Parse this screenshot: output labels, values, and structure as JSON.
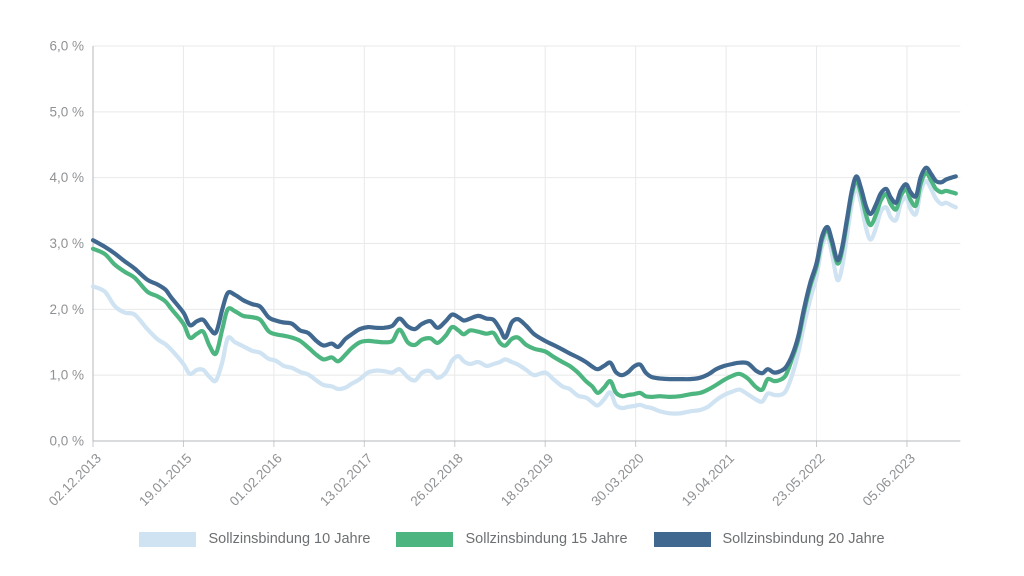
{
  "chart_data": {
    "type": "line",
    "title": "",
    "xlabel": "",
    "ylabel": "",
    "grid": true,
    "legend_position": "bottom",
    "y_axis": {
      "min": 0,
      "max": 6,
      "tick_step": 1,
      "tick_labels": [
        "0,0 %",
        "1,0 %",
        "2,0 %",
        "3,0 %",
        "4,0 %",
        "5,0 %",
        "6,0 %"
      ]
    },
    "x_axis": {
      "tick_labels": [
        "02.12.2013",
        "19.01.2015",
        "01.02.2016",
        "13.02.2017",
        "26.02.2018",
        "18.03.2019",
        "30.03.2020",
        "19.04.2021",
        "23.05.2022",
        "05.06.2023"
      ],
      "label_rotation_deg": -45,
      "axis_end_tick_units": 9.59
    },
    "colors": {
      "axis": "#b4b7ba",
      "grid": "#e8e9ea",
      "tick_below_axis": "#c8cacc",
      "tick_label": "#8f9295",
      "legend_text": "#6d7073"
    },
    "x": [
      0,
      0.13,
      0.24,
      0.35,
      0.46,
      0.6,
      0.71,
      0.8,
      0.87,
      1.0,
      1.07,
      1.15,
      1.22,
      1.29,
      1.36,
      1.43,
      1.49,
      1.57,
      1.66,
      1.76,
      1.85,
      1.94,
      2.02,
      2.11,
      2.2,
      2.29,
      2.38,
      2.47,
      2.55,
      2.64,
      2.71,
      2.79,
      2.86,
      2.95,
      3.04,
      3.13,
      3.22,
      3.31,
      3.39,
      3.48,
      3.56,
      3.64,
      3.73,
      3.81,
      3.9,
      3.97,
      4.04,
      4.1,
      4.17,
      4.26,
      4.35,
      4.43,
      4.5,
      4.56,
      4.63,
      4.7,
      4.79,
      4.88,
      5.0,
      5.09,
      5.19,
      5.27,
      5.36,
      5.45,
      5.52,
      5.58,
      5.65,
      5.72,
      5.78,
      5.85,
      5.92,
      5.98,
      6.05,
      6.11,
      6.18,
      6.27,
      6.38,
      6.49,
      6.6,
      6.71,
      6.8,
      6.89,
      6.98,
      7.07,
      7.15,
      7.24,
      7.33,
      7.4,
      7.46,
      7.53,
      7.6,
      7.66,
      7.73,
      7.8,
      7.86,
      7.93,
      8.0,
      8.06,
      8.12,
      8.17,
      8.23,
      8.28,
      8.34,
      8.39,
      8.44,
      8.49,
      8.55,
      8.6,
      8.66,
      8.71,
      8.77,
      8.82,
      8.88,
      8.93,
      8.99,
      9.04,
      9.1,
      9.15,
      9.21,
      9.27,
      9.32,
      9.38,
      9.43,
      9.49,
      9.54
    ],
    "series": [
      {
        "name": "Sollzinsbindung 10 Jahre",
        "color": "#cfe3f2",
        "values": [
          2.35,
          2.27,
          2.05,
          1.95,
          1.92,
          1.7,
          1.55,
          1.47,
          1.38,
          1.17,
          1.02,
          1.08,
          1.08,
          0.97,
          0.92,
          1.2,
          1.56,
          1.5,
          1.44,
          1.37,
          1.34,
          1.25,
          1.22,
          1.14,
          1.11,
          1.05,
          1.01,
          0.92,
          0.85,
          0.83,
          0.79,
          0.81,
          0.87,
          0.94,
          1.04,
          1.07,
          1.06,
          1.04,
          1.09,
          0.97,
          0.92,
          1.04,
          1.06,
          0.96,
          1.04,
          1.22,
          1.29,
          1.21,
          1.17,
          1.2,
          1.14,
          1.17,
          1.2,
          1.24,
          1.2,
          1.16,
          1.08,
          1.0,
          1.04,
          0.94,
          0.83,
          0.79,
          0.69,
          0.66,
          0.59,
          0.54,
          0.63,
          0.74,
          0.55,
          0.5,
          0.52,
          0.53,
          0.55,
          0.52,
          0.5,
          0.45,
          0.42,
          0.42,
          0.45,
          0.47,
          0.52,
          0.62,
          0.7,
          0.75,
          0.78,
          0.71,
          0.63,
          0.6,
          0.72,
          0.7,
          0.7,
          0.76,
          1.0,
          1.35,
          1.75,
          2.15,
          2.5,
          2.95,
          3.1,
          2.85,
          2.45,
          2.62,
          3.15,
          3.6,
          3.85,
          3.62,
          3.22,
          3.06,
          3.25,
          3.48,
          3.55,
          3.4,
          3.36,
          3.6,
          3.7,
          3.52,
          3.45,
          3.78,
          3.95,
          3.82,
          3.68,
          3.6,
          3.62,
          3.58,
          3.55
        ]
      },
      {
        "name": "Sollzinsbindung 15 Jahre",
        "color": "#4db580",
        "values": [
          2.92,
          2.84,
          2.68,
          2.57,
          2.48,
          2.27,
          2.2,
          2.12,
          2.0,
          1.78,
          1.57,
          1.63,
          1.66,
          1.44,
          1.33,
          1.7,
          2.0,
          1.97,
          1.9,
          1.88,
          1.84,
          1.67,
          1.62,
          1.6,
          1.57,
          1.52,
          1.42,
          1.31,
          1.24,
          1.27,
          1.21,
          1.31,
          1.41,
          1.5,
          1.52,
          1.51,
          1.5,
          1.52,
          1.69,
          1.5,
          1.46,
          1.54,
          1.56,
          1.49,
          1.6,
          1.73,
          1.68,
          1.62,
          1.68,
          1.66,
          1.63,
          1.64,
          1.49,
          1.45,
          1.55,
          1.57,
          1.46,
          1.4,
          1.36,
          1.28,
          1.2,
          1.14,
          1.04,
          0.91,
          0.83,
          0.73,
          0.81,
          0.91,
          0.74,
          0.68,
          0.7,
          0.71,
          0.73,
          0.68,
          0.67,
          0.68,
          0.67,
          0.68,
          0.71,
          0.73,
          0.78,
          0.85,
          0.93,
          0.99,
          1.02,
          0.95,
          0.82,
          0.78,
          0.94,
          0.91,
          0.93,
          1.0,
          1.25,
          1.55,
          1.95,
          2.35,
          2.65,
          3.05,
          3.2,
          3.0,
          2.7,
          2.87,
          3.35,
          3.75,
          3.95,
          3.77,
          3.42,
          3.28,
          3.45,
          3.65,
          3.75,
          3.6,
          3.52,
          3.72,
          3.82,
          3.66,
          3.58,
          3.9,
          4.07,
          3.95,
          3.83,
          3.78,
          3.8,
          3.78,
          3.76
        ]
      },
      {
        "name": "Sollzinsbindung 20 Jahre",
        "color": "#416990",
        "values": [
          3.05,
          2.95,
          2.85,
          2.73,
          2.62,
          2.45,
          2.38,
          2.3,
          2.17,
          1.95,
          1.76,
          1.82,
          1.84,
          1.71,
          1.65,
          2.0,
          2.25,
          2.22,
          2.14,
          2.08,
          2.04,
          1.88,
          1.83,
          1.8,
          1.78,
          1.68,
          1.64,
          1.52,
          1.45,
          1.48,
          1.43,
          1.55,
          1.62,
          1.7,
          1.73,
          1.72,
          1.72,
          1.75,
          1.86,
          1.74,
          1.7,
          1.78,
          1.82,
          1.72,
          1.82,
          1.92,
          1.88,
          1.83,
          1.86,
          1.9,
          1.86,
          1.84,
          1.7,
          1.57,
          1.8,
          1.85,
          1.75,
          1.62,
          1.52,
          1.46,
          1.39,
          1.33,
          1.27,
          1.2,
          1.13,
          1.09,
          1.14,
          1.19,
          1.05,
          1.0,
          1.05,
          1.13,
          1.16,
          1.04,
          0.97,
          0.95,
          0.94,
          0.94,
          0.94,
          0.96,
          1.01,
          1.09,
          1.14,
          1.17,
          1.19,
          1.18,
          1.07,
          1.03,
          1.09,
          1.04,
          1.06,
          1.12,
          1.3,
          1.6,
          2.0,
          2.4,
          2.7,
          3.1,
          3.25,
          3.05,
          2.75,
          2.92,
          3.4,
          3.8,
          4.02,
          3.85,
          3.55,
          3.45,
          3.6,
          3.76,
          3.83,
          3.7,
          3.62,
          3.8,
          3.9,
          3.78,
          3.72,
          4.0,
          4.15,
          4.05,
          3.95,
          3.93,
          3.97,
          4.0,
          4.02
        ]
      }
    ]
  }
}
